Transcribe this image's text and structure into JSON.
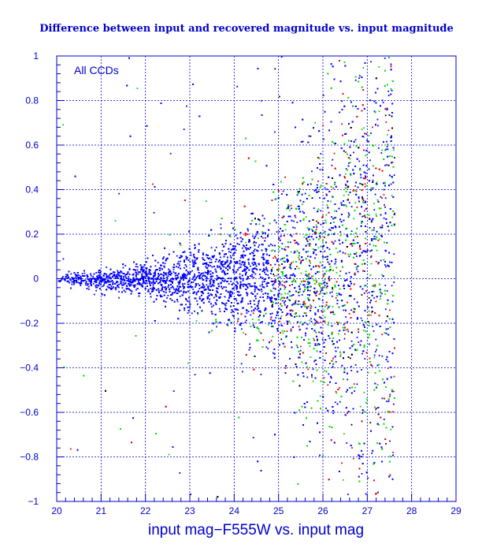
{
  "chart_data": {
    "type": "scatter",
    "title": "Difference between input and recovered magnitude vs. input magnitude",
    "xlabel": "input mag−F555W vs. input mag",
    "ylabel": "",
    "annotation": "All CCDs",
    "xlim": [
      20,
      29
    ],
    "ylim": [
      -1,
      1
    ],
    "x_ticks": [
      20,
      21,
      22,
      23,
      24,
      25,
      26,
      27,
      28,
      29
    ],
    "x_tick_labels": [
      "20",
      "21",
      "22",
      "23",
      "24",
      "25",
      "26",
      "27",
      "28",
      "29"
    ],
    "y_ticks": [
      -1,
      -0.8,
      -0.6,
      -0.4,
      -0.2,
      0,
      0.2,
      0.4,
      0.6,
      0.8,
      1
    ],
    "y_tick_labels": [
      "−1",
      "−0.8",
      "−0.6",
      "−0.4",
      "−0.2",
      "0",
      "0.2",
      "0.4",
      "0.6",
      "0.8",
      "1"
    ],
    "grid": true,
    "series_colors": [
      "#0000ff",
      "#00dd00",
      "#ee0000",
      "#000000"
    ],
    "envelope": [
      {
        "x": 20.0,
        "sigma": 0.012
      },
      {
        "x": 21.0,
        "sigma": 0.022
      },
      {
        "x": 22.0,
        "sigma": 0.04
      },
      {
        "x": 23.0,
        "sigma": 0.07
      },
      {
        "x": 24.0,
        "sigma": 0.11
      },
      {
        "x": 25.0,
        "sigma": 0.18
      },
      {
        "x": 25.8,
        "sigma": 0.28
      },
      {
        "x": 26.5,
        "sigma": 0.42
      },
      {
        "x": 27.2,
        "sigma": 0.6
      }
    ]
  },
  "colors": {
    "frame": "#0000cc",
    "grid": "#0000cc",
    "background": "#ffffff"
  }
}
